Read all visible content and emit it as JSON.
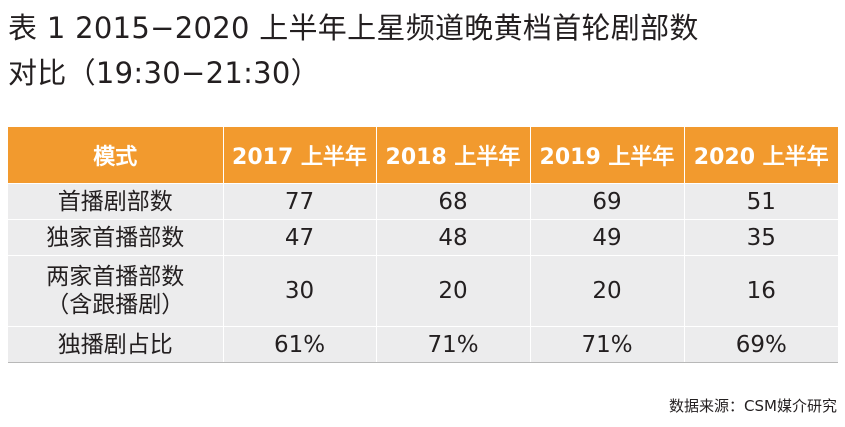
{
  "title": {
    "line1": "表 1  2015−2020 上半年上星频道晚黄档首轮剧部数",
    "line2": "对比（19:30−21:30）"
  },
  "table": {
    "headers": [
      "模式",
      "2017 上半年",
      "2018 上半年",
      "2019 上半年",
      "2020 上半年"
    ],
    "rows": [
      {
        "label_lines": [
          "首播剧部数"
        ],
        "values": [
          "77",
          "68",
          "69",
          "51"
        ]
      },
      {
        "label_lines": [
          "独家首播部数"
        ],
        "values": [
          "47",
          "48",
          "49",
          "35"
        ]
      },
      {
        "label_lines": [
          "两家首播部数",
          "（含跟播剧）"
        ],
        "values": [
          "30",
          "20",
          "20",
          "16"
        ]
      },
      {
        "label_lines": [
          "独播剧占比"
        ],
        "values": [
          "61%",
          "71%",
          "71%",
          "69%"
        ]
      }
    ]
  },
  "source": "数据来源：CSM媒介研究",
  "colors": {
    "header_bg": "#f29a2e",
    "header_text": "#ffffff",
    "cell_bg": "#ececed",
    "text": "#231f20"
  }
}
